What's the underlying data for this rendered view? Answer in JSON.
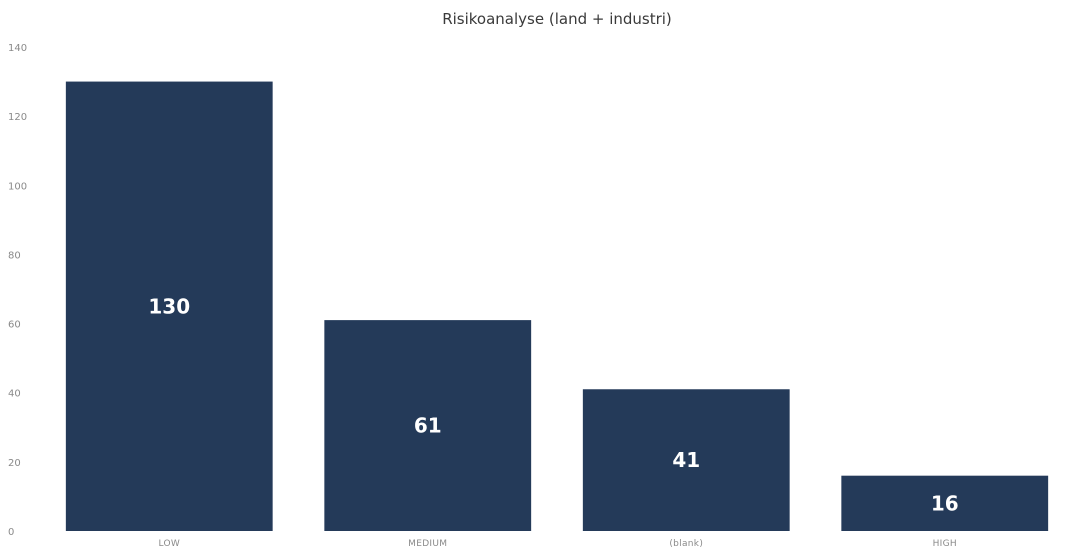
{
  "chart_data": {
    "type": "bar",
    "title": "Risikoanalyse (land + industri)",
    "xlabel": "",
    "ylabel": "",
    "categories": [
      "LOW",
      "MEDIUM",
      "(blank)",
      "HIGH"
    ],
    "values": [
      130,
      61,
      41,
      16
    ],
    "data_labels": [
      "130",
      "61",
      "41",
      "16"
    ],
    "ylim": [
      0,
      140
    ],
    "yticks": [
      0,
      20,
      40,
      60,
      80,
      100,
      120,
      140
    ],
    "ytick_labels": [
      "0",
      "20",
      "40",
      "60",
      "80",
      "100",
      "120",
      "140"
    ],
    "grid": false,
    "legend": "none",
    "bar_color": "#243a59"
  }
}
